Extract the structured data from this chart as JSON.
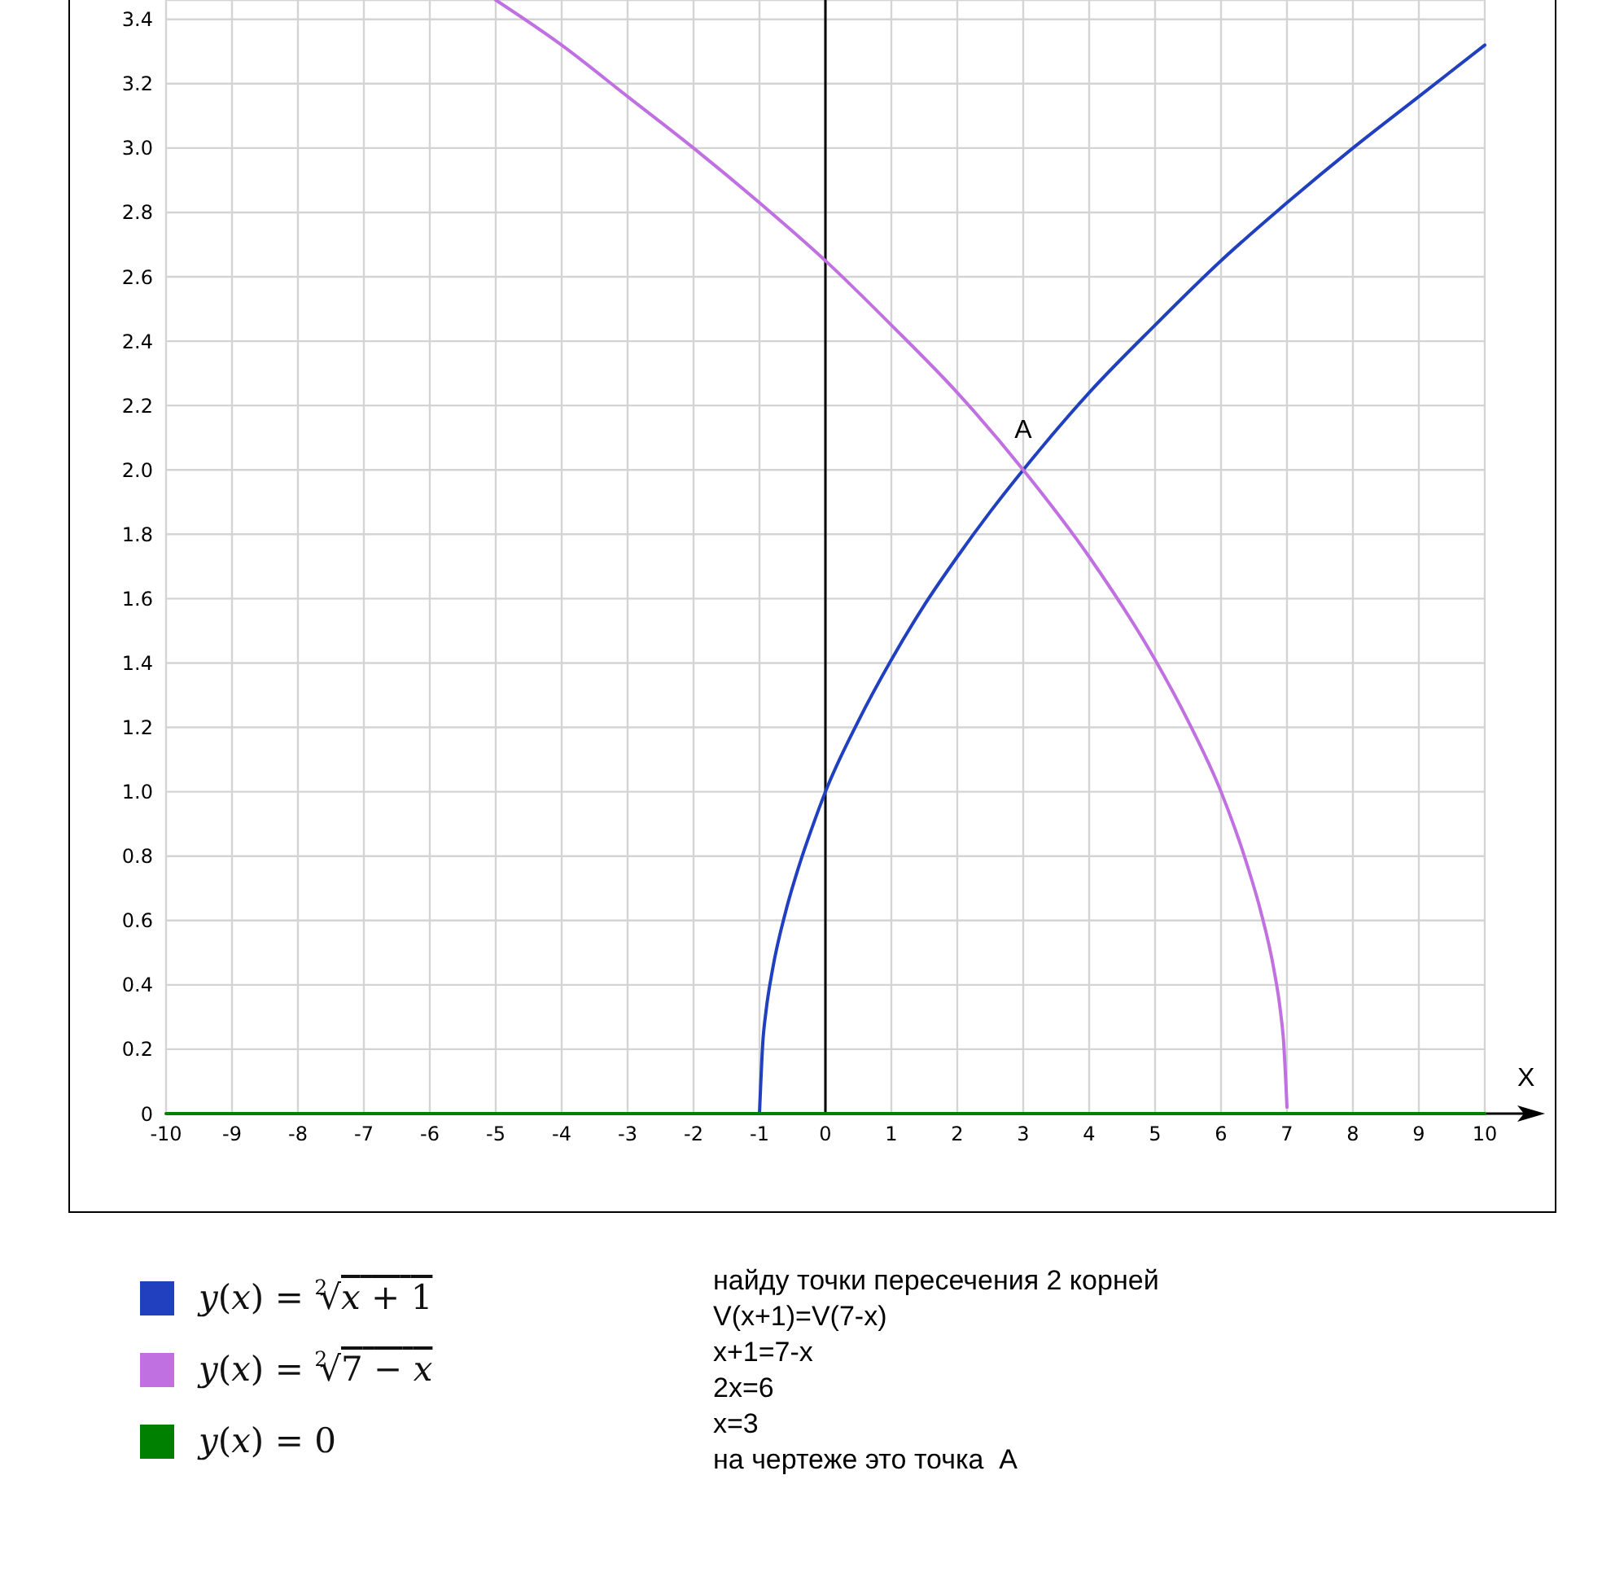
{
  "chart_data": {
    "type": "line",
    "xlabel": "X",
    "xlim": [
      -10,
      10
    ],
    "xticks": [
      -10,
      -9,
      -8,
      -7,
      -6,
      -5,
      -4,
      -3,
      -2,
      -1,
      0,
      1,
      2,
      3,
      4,
      5,
      6,
      7,
      8,
      9,
      10
    ],
    "ylim": [
      0,
      3.46
    ],
    "yticks": [
      0,
      0.2,
      0.4,
      0.6,
      0.8,
      {
        "value": 1,
        "label": "1.0"
      },
      1.2,
      1.4,
      1.6,
      1.8,
      {
        "value": 2,
        "label": "2.0"
      },
      2.2,
      2.4,
      2.6,
      2.8,
      {
        "value": 3,
        "label": "3.0"
      },
      3.2,
      3.4
    ],
    "grid": true,
    "legend": "bottom left",
    "series": [
      {
        "name": "y(x) = $^{2}$√x + 1",
        "color": "#2040c0",
        "x": [
          -1,
          -0.95,
          -0.9,
          -0.8,
          -0.6,
          -0.4,
          -0.2,
          0,
          0.5,
          1,
          1.5,
          2,
          2.5,
          3,
          4,
          5,
          6,
          7,
          8,
          9,
          10
        ],
        "values": [
          0,
          0.22,
          0.32,
          0.45,
          0.63,
          0.77,
          0.89,
          1,
          1.22,
          1.41,
          1.58,
          1.73,
          1.87,
          2,
          2.24,
          2.45,
          2.65,
          2.83,
          3,
          3.16,
          3.32
        ]
      },
      {
        "name": "y(x) = $^{2}$√7 − x",
        "color": "#c070e0",
        "x": [
          -5,
          -4,
          -3,
          -2,
          -1,
          0,
          1,
          2,
          3,
          4,
          5,
          5.5,
          6,
          6.4,
          6.6,
          6.8,
          6.9,
          6.95,
          7
        ],
        "values": [
          3.46,
          3.32,
          3.16,
          3,
          2.83,
          2.65,
          2.45,
          2.24,
          2,
          1.73,
          1.41,
          1.22,
          1,
          0.77,
          0.63,
          0.45,
          0.32,
          0.22,
          0.02
        ]
      },
      {
        "name": "y(x) = 0",
        "color": "#008000",
        "x": [
          -10,
          10
        ],
        "values": [
          0,
          0
        ]
      }
    ],
    "ref_lines": [
      {
        "axis": "x",
        "value": 0,
        "color": "#000000"
      }
    ],
    "annotations": [
      {
        "text": "A",
        "x": 3,
        "y": 2
      },
      "найду точки пересечения 2 корней",
      "V(x+1)=V(7-x)",
      "x+1=7-x",
      "2x=6",
      "x=3",
      "на чертеже это точка  A"
    ]
  }
}
